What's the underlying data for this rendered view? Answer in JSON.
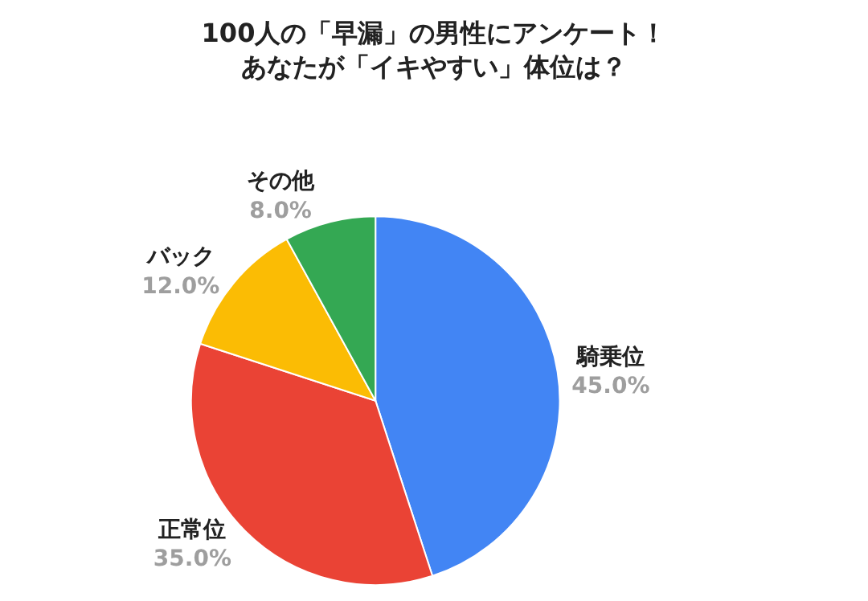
{
  "chart_data": {
    "type": "pie",
    "title": "100人の「早漏」の男性にアンケート！",
    "subtitle": "あなたが「イキやすい」体位は？",
    "categories": [
      "騎乗位",
      "正常位",
      "バック",
      "その他"
    ],
    "values": [
      45,
      35,
      12,
      8
    ],
    "colors": [
      "#4285f4",
      "#ea4335",
      "#fbbc04",
      "#34a853"
    ],
    "value_labels": [
      "45.0%",
      "35.0%",
      "12.0%",
      "8.0%"
    ],
    "legend": false
  }
}
